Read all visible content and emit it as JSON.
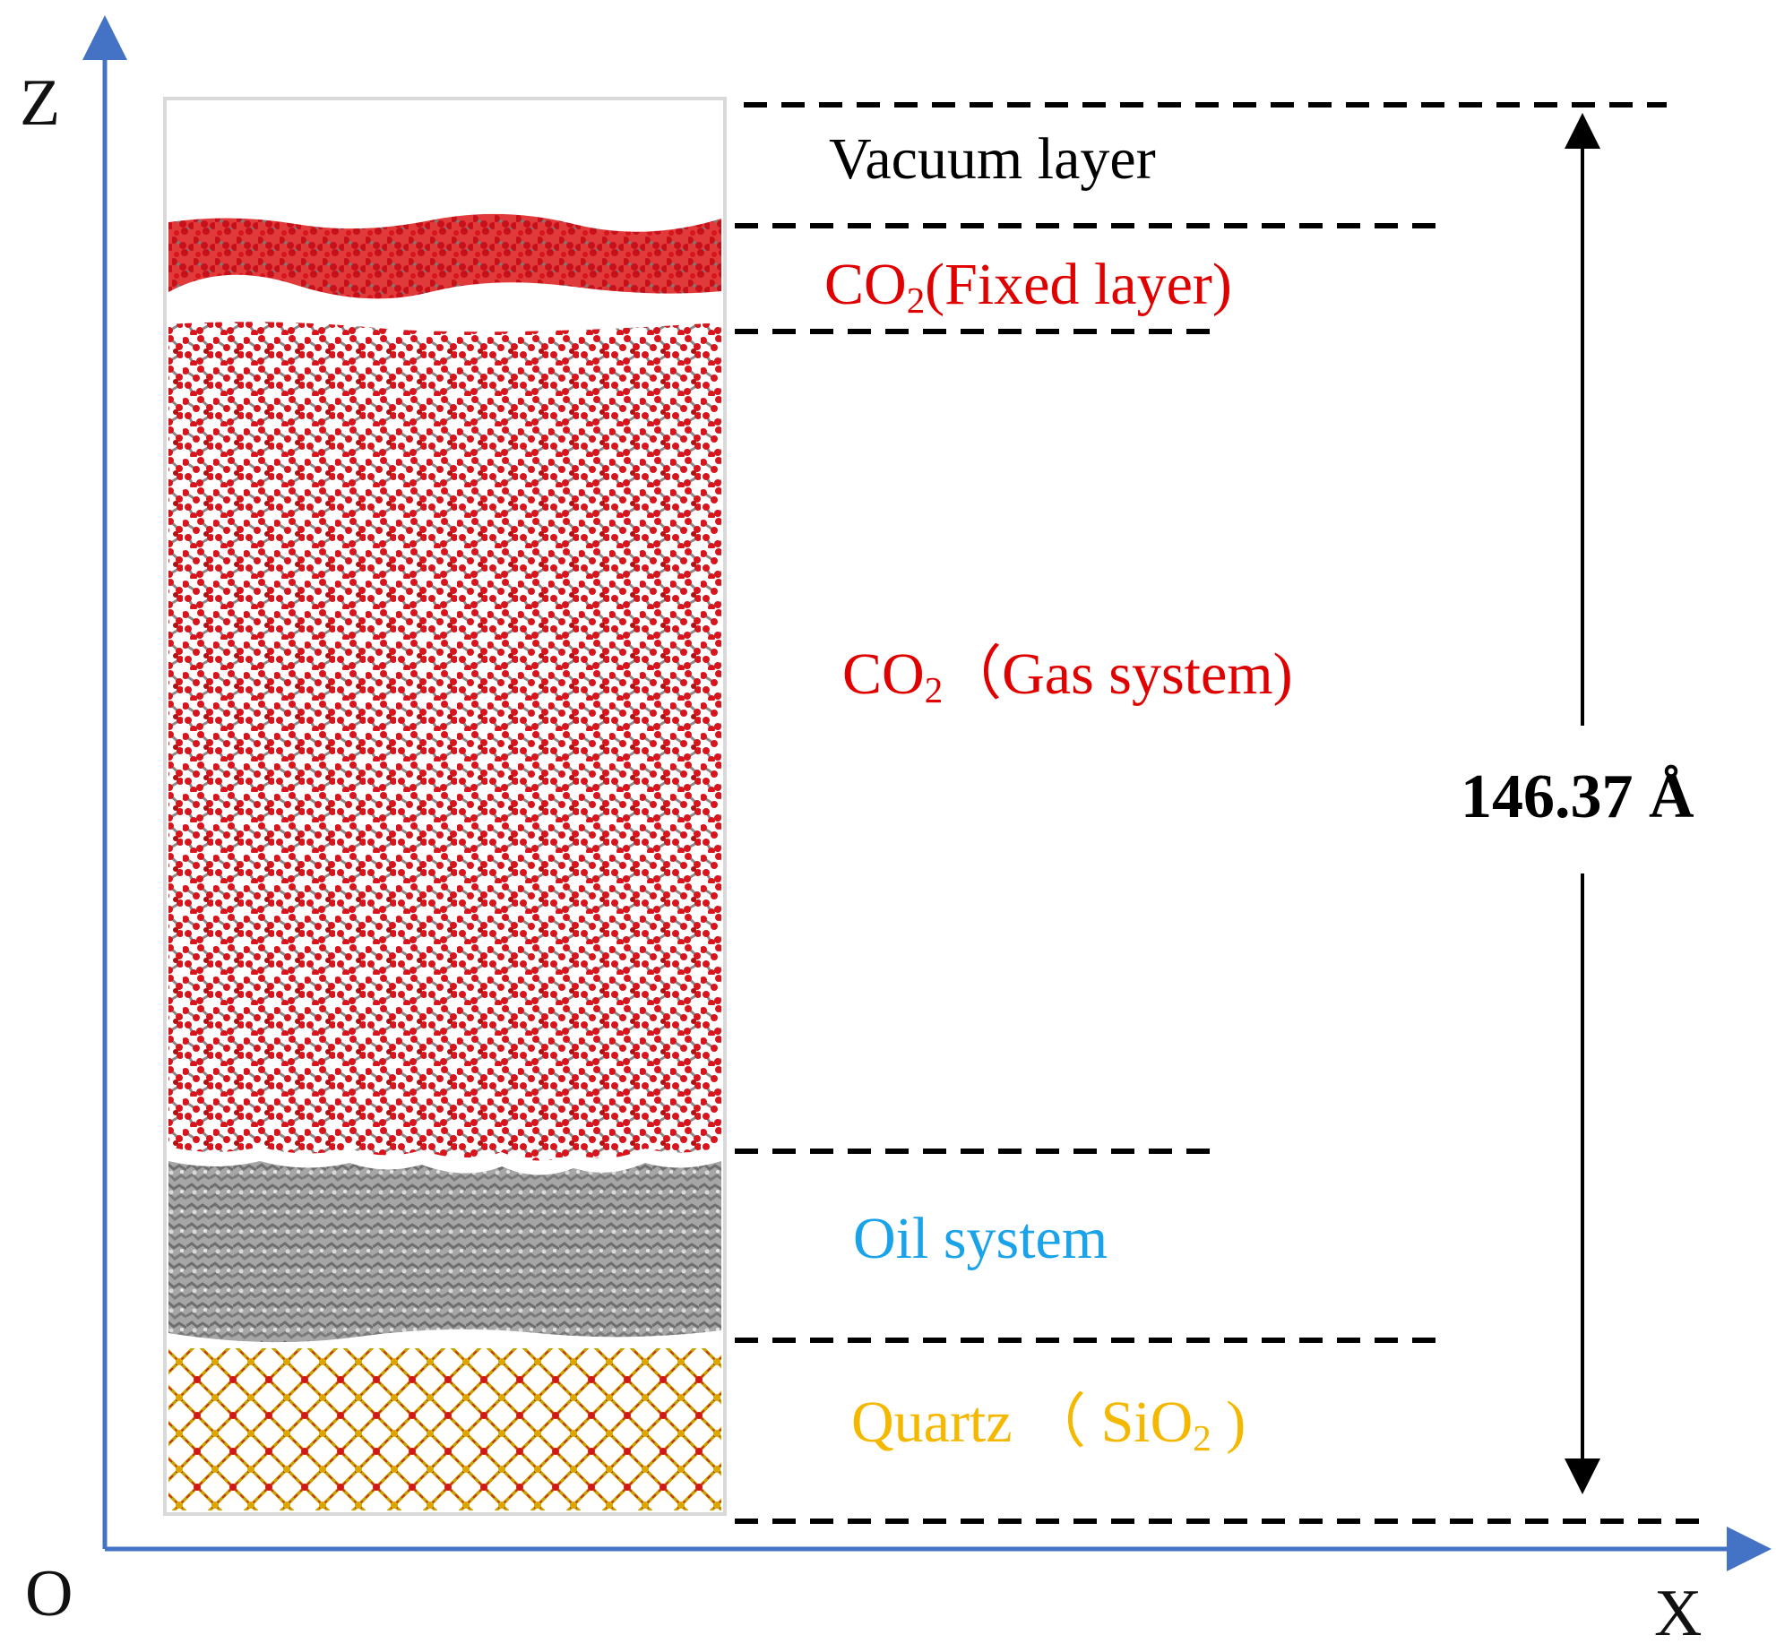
{
  "axes": {
    "z_label": "Z",
    "x_label": "X",
    "origin_label": "O",
    "color": "#4472c4"
  },
  "dimension": {
    "label": "146.37 Å",
    "color": "#000000"
  },
  "layers": [
    {
      "id": "vacuum",
      "text": "Vacuum  layer",
      "sub": "",
      "after": "",
      "color": "#000000"
    },
    {
      "id": "co2-fixed",
      "text": "CO",
      "sub": "2",
      "after": "(Fixed layer)",
      "color": "#e00000"
    },
    {
      "id": "co2-gas",
      "text": "CO",
      "sub": "2",
      "after": "（Gas system)",
      "color": "#e00000"
    },
    {
      "id": "oil",
      "text": "Oil system",
      "sub": "",
      "after": "",
      "color": "#1aa3e8"
    },
    {
      "id": "quartz",
      "text": "Quartz （ SiO",
      "sub": "2",
      "after": " )",
      "color": "#f5b800"
    }
  ],
  "colors": {
    "co2_oxygen": "#d8141c",
    "carbon": "#8a8a8a",
    "oil": "#8c8c8c",
    "quartz_o": "#d01818",
    "quartz_si": "#d8a800",
    "box_outline": "#d9d9d9",
    "dash": "#000000"
  }
}
